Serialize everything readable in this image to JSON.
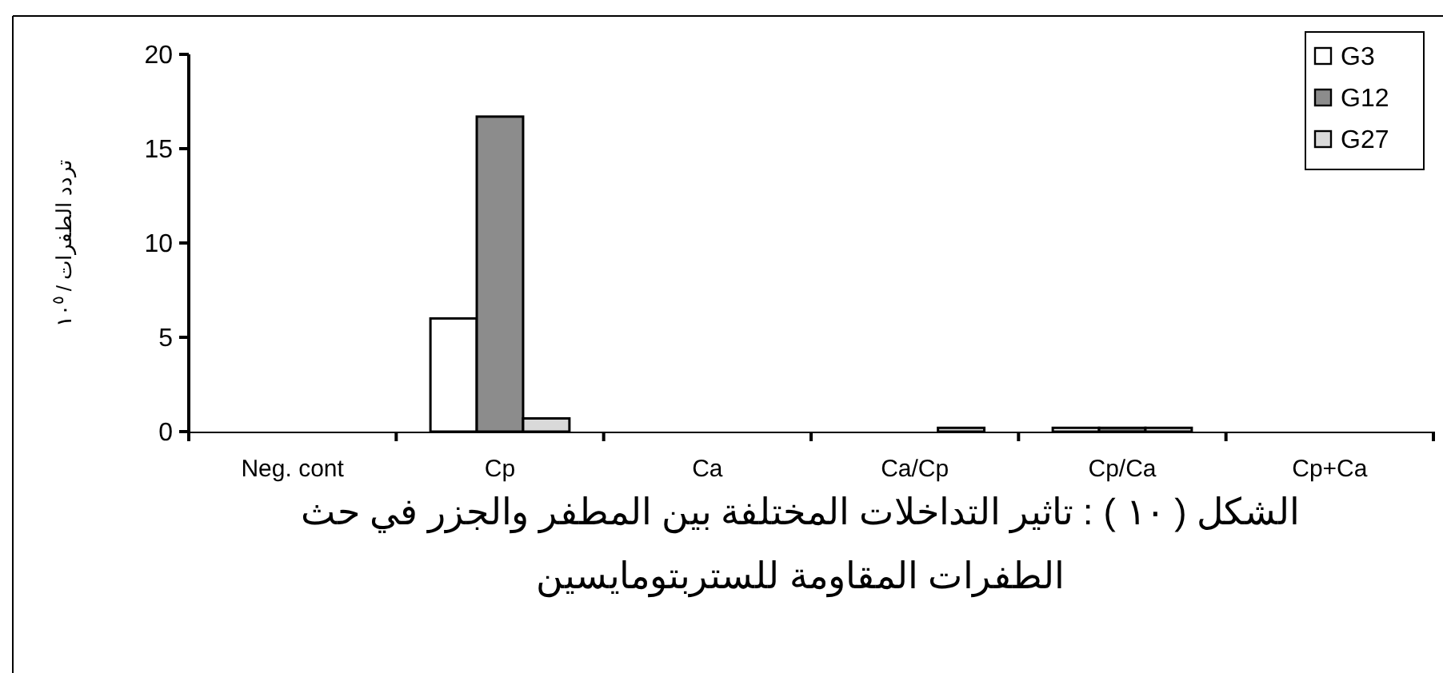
{
  "chart_data": {
    "type": "bar",
    "title": "الشكل ( ١٠ ) : تاثير التداخلات المختلفة بين المطفر والجزر في حث الطفرات المقاومة للستربتومايسين",
    "ylabel": "تردد الطفرات / ١٠$^{٥}$",
    "categories": [
      "Neg. cont",
      "Cp",
      "Ca",
      "Ca/Cp",
      "Cp/Ca",
      "Cp+Ca"
    ],
    "series": [
      {
        "name": "G3",
        "color": "#ffffff",
        "values": [
          0,
          6,
          0,
          0,
          0.2,
          0
        ]
      },
      {
        "name": "G12",
        "color": "#8c8c8c",
        "values": [
          0,
          16.7,
          0,
          0,
          0.2,
          0
        ]
      },
      {
        "name": "G27",
        "color": "#d9d9d9",
        "values": [
          0,
          0.7,
          0,
          0.2,
          0.2,
          0
        ]
      }
    ],
    "ylim": [
      0,
      20
    ],
    "yticks": [
      0,
      5,
      10,
      15,
      20
    ],
    "grid": false,
    "legend": "top right"
  }
}
